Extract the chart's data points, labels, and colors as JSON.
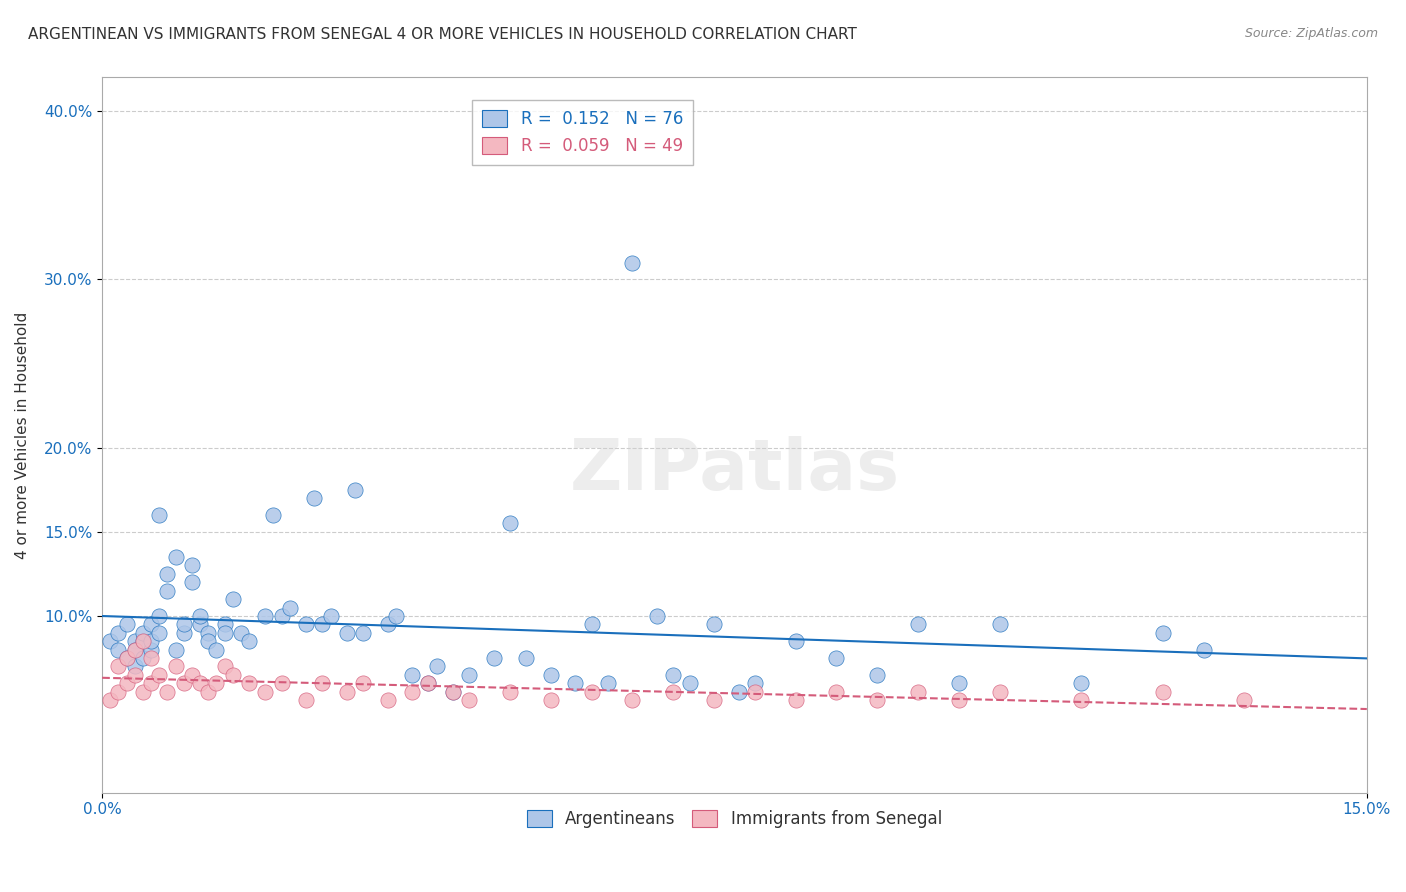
{
  "title": "ARGENTINEAN VS IMMIGRANTS FROM SENEGAL 4 OR MORE VEHICLES IN HOUSEHOLD CORRELATION CHART",
  "source": "Source: ZipAtlas.com",
  "xlabel_ticks": [
    "0.0%",
    "15.0%"
  ],
  "ylabel_label": "4 or more Vehicles in Household",
  "ylabel_ticks": [
    "40.0%",
    "30.0%",
    "20.0%",
    "15.0%",
    "10.0%"
  ],
  "xlim": [
    0.0,
    0.155
  ],
  "ylim": [
    -0.005,
    0.42
  ],
  "legend_entries": [
    {
      "label": "R =  0.152   N = 76",
      "color": "#aec6e8"
    },
    {
      "label": "R =  0.059   N = 49",
      "color": "#f4b8c1"
    }
  ],
  "argentinean_x": [
    0.001,
    0.002,
    0.002,
    0.003,
    0.003,
    0.004,
    0.004,
    0.004,
    0.005,
    0.005,
    0.005,
    0.006,
    0.006,
    0.006,
    0.007,
    0.007,
    0.007,
    0.008,
    0.008,
    0.009,
    0.009,
    0.01,
    0.01,
    0.011,
    0.011,
    0.012,
    0.012,
    0.013,
    0.013,
    0.014,
    0.015,
    0.015,
    0.016,
    0.017,
    0.018,
    0.02,
    0.021,
    0.022,
    0.023,
    0.025,
    0.026,
    0.027,
    0.028,
    0.03,
    0.031,
    0.032,
    0.035,
    0.036,
    0.038,
    0.04,
    0.041,
    0.043,
    0.045,
    0.048,
    0.05,
    0.052,
    0.055,
    0.058,
    0.06,
    0.062,
    0.065,
    0.068,
    0.07,
    0.072,
    0.075,
    0.078,
    0.08,
    0.085,
    0.09,
    0.095,
    0.1,
    0.105,
    0.11,
    0.12,
    0.13,
    0.135
  ],
  "argentinean_y": [
    0.085,
    0.09,
    0.08,
    0.075,
    0.095,
    0.07,
    0.085,
    0.08,
    0.085,
    0.09,
    0.075,
    0.095,
    0.08,
    0.085,
    0.16,
    0.09,
    0.1,
    0.115,
    0.125,
    0.135,
    0.08,
    0.09,
    0.095,
    0.13,
    0.12,
    0.095,
    0.1,
    0.09,
    0.085,
    0.08,
    0.095,
    0.09,
    0.11,
    0.09,
    0.085,
    0.1,
    0.16,
    0.1,
    0.105,
    0.095,
    0.17,
    0.095,
    0.1,
    0.09,
    0.175,
    0.09,
    0.095,
    0.1,
    0.065,
    0.06,
    0.07,
    0.055,
    0.065,
    0.075,
    0.155,
    0.075,
    0.065,
    0.06,
    0.095,
    0.06,
    0.31,
    0.1,
    0.065,
    0.06,
    0.095,
    0.055,
    0.06,
    0.085,
    0.075,
    0.065,
    0.095,
    0.06,
    0.095,
    0.06,
    0.09,
    0.08
  ],
  "senegal_x": [
    0.001,
    0.002,
    0.002,
    0.003,
    0.003,
    0.004,
    0.004,
    0.005,
    0.005,
    0.006,
    0.006,
    0.007,
    0.008,
    0.009,
    0.01,
    0.011,
    0.012,
    0.013,
    0.014,
    0.015,
    0.016,
    0.018,
    0.02,
    0.022,
    0.025,
    0.027,
    0.03,
    0.032,
    0.035,
    0.038,
    0.04,
    0.043,
    0.045,
    0.05,
    0.055,
    0.06,
    0.065,
    0.07,
    0.075,
    0.08,
    0.085,
    0.09,
    0.095,
    0.1,
    0.105,
    0.11,
    0.12,
    0.13,
    0.14
  ],
  "senegal_y": [
    0.05,
    0.07,
    0.055,
    0.075,
    0.06,
    0.08,
    0.065,
    0.085,
    0.055,
    0.075,
    0.06,
    0.065,
    0.055,
    0.07,
    0.06,
    0.065,
    0.06,
    0.055,
    0.06,
    0.07,
    0.065,
    0.06,
    0.055,
    0.06,
    0.05,
    0.06,
    0.055,
    0.06,
    0.05,
    0.055,
    0.06,
    0.055,
    0.05,
    0.055,
    0.05,
    0.055,
    0.05,
    0.055,
    0.05,
    0.055,
    0.05,
    0.055,
    0.05,
    0.055,
    0.05,
    0.055,
    0.05,
    0.055,
    0.05
  ],
  "blue_color": "#aec6e8",
  "pink_color": "#f4b8c1",
  "blue_line_color": "#1a6fbc",
  "pink_line_color": "#d45b7a",
  "watermark": "ZIPatlas",
  "title_fontsize": 11,
  "source_fontsize": 9
}
